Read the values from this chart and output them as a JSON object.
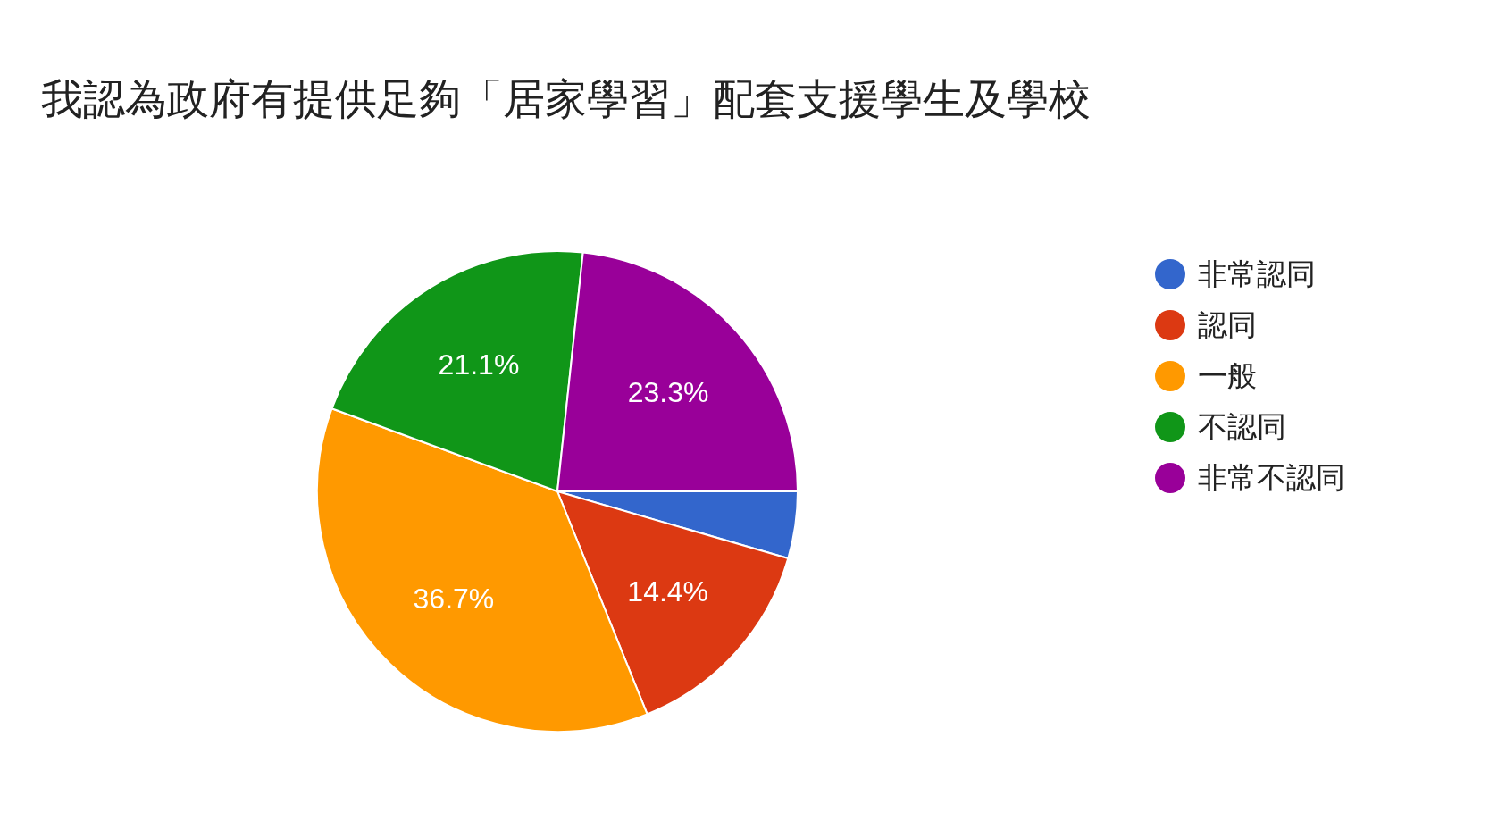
{
  "chart_data": {
    "type": "pie",
    "title": "我認為政府有提供足夠「居家學習」配套支援學生及學校",
    "categories": [
      "非常認同",
      "認同",
      "一般",
      "不認同",
      "非常不認同"
    ],
    "values": [
      4.5,
      14.4,
      36.7,
      21.1,
      23.3
    ],
    "colors": [
      "#3366cc",
      "#dc3912",
      "#ff9900",
      "#109618",
      "#990099"
    ],
    "value_labels": [
      null,
      "14.4%",
      "36.7%",
      "21.1%",
      "23.3%"
    ],
    "legend": "right"
  }
}
